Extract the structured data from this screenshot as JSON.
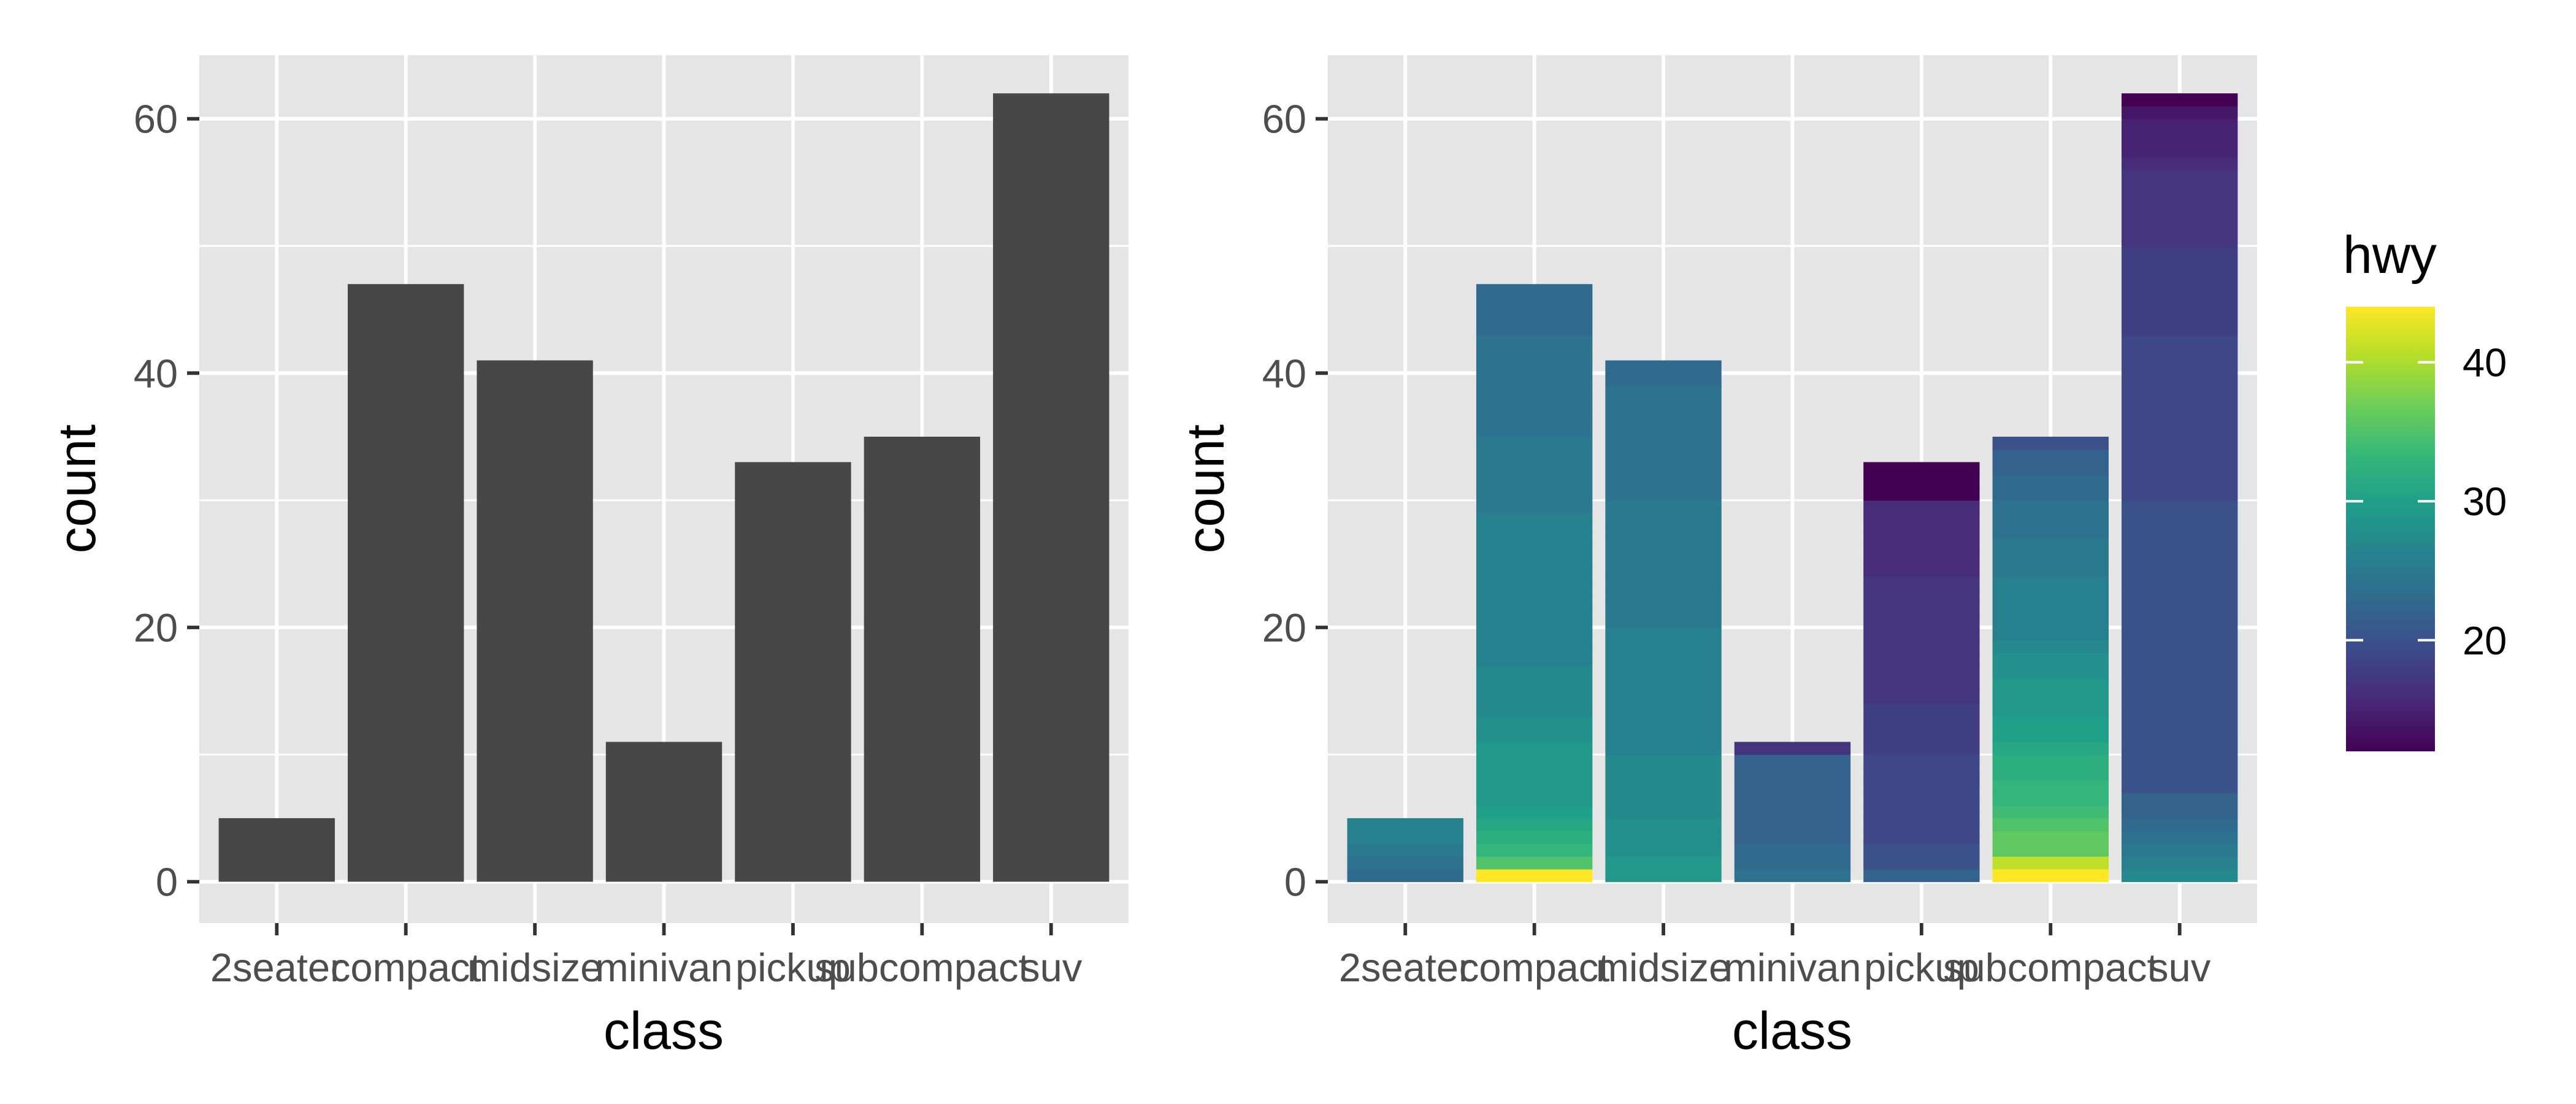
{
  "chart_data": [
    {
      "type": "bar",
      "categories": [
        "2seater",
        "compact",
        "midsize",
        "minivan",
        "pickup",
        "subcompact",
        "suv"
      ],
      "values": [
        5,
        47,
        41,
        11,
        33,
        35,
        62
      ],
      "xlabel": "class",
      "ylabel": "count",
      "ylim": [
        0,
        65
      ],
      "yticks": [
        0,
        20,
        40,
        60
      ],
      "grid": true,
      "bar_color": "#474747"
    },
    {
      "type": "bar",
      "stacked": true,
      "categories": [
        "2seater",
        "compact",
        "midsize",
        "minivan",
        "pickup",
        "subcompact",
        "suv"
      ],
      "values": [
        5,
        47,
        41,
        11,
        33,
        35,
        62
      ],
      "xlabel": "class",
      "ylabel": "count",
      "ylim": [
        0,
        65
      ],
      "yticks": [
        0,
        20,
        40,
        60
      ],
      "grid": true,
      "fill_variable": "hwy",
      "segments_hwy": {
        "2seater": [
          23,
          24,
          25,
          26,
          26
        ],
        "compact": [
          44,
          35,
          33,
          32,
          31,
          30,
          29,
          29,
          29,
          29,
          29,
          28,
          28,
          27,
          27,
          27,
          27,
          26,
          26,
          26,
          26,
          26,
          26,
          26,
          26,
          26,
          26,
          26,
          26,
          25,
          25,
          25,
          25,
          25,
          25,
          24,
          24,
          24,
          24,
          24,
          24,
          24,
          24,
          23,
          23,
          23,
          23
        ],
        "midsize": [
          29,
          29,
          28,
          28,
          28,
          27,
          27,
          27,
          27,
          27,
          26,
          26,
          26,
          26,
          26,
          26,
          26,
          26,
          26,
          26,
          25,
          25,
          25,
          25,
          25,
          25,
          25,
          25,
          25,
          25,
          24,
          24,
          24,
          24,
          24,
          24,
          24,
          24,
          24,
          23,
          23
        ],
        "minivan": [
          24,
          23,
          23,
          22,
          22,
          22,
          22,
          22,
          22,
          22,
          17
        ],
        "pickup": [
          22,
          20,
          20,
          19,
          19,
          19,
          19,
          19,
          19,
          19,
          18,
          18,
          18,
          18,
          17,
          17,
          17,
          17,
          17,
          17,
          17,
          17,
          17,
          17,
          16,
          16,
          16,
          16,
          16,
          16,
          12,
          12,
          12
        ],
        "subcompact": [
          44,
          41,
          36,
          36,
          35,
          34,
          33,
          33,
          32,
          32,
          31,
          30,
          30,
          29,
          29,
          29,
          28,
          28,
          27,
          26,
          26,
          26,
          26,
          26,
          25,
          25,
          25,
          24,
          24,
          24,
          23,
          23,
          22,
          22,
          20
        ],
        "suv": [
          27,
          26,
          25,
          24,
          23,
          22,
          22,
          20,
          20,
          20,
          20,
          20,
          20,
          20,
          20,
          20,
          20,
          20,
          20,
          20,
          20,
          20,
          20,
          20,
          20,
          20,
          20,
          20,
          20,
          20,
          19,
          19,
          19,
          19,
          19,
          19,
          19,
          19,
          19,
          19,
          19,
          19,
          19,
          18,
          18,
          18,
          18,
          18,
          18,
          18,
          17,
          17,
          17,
          17,
          17,
          17,
          16,
          15,
          15,
          15,
          14,
          12
        ]
      },
      "legend": {
        "title": "hwy",
        "position": "right",
        "range": [
          12,
          44
        ],
        "ticks": [
          20,
          30,
          40
        ],
        "colormap": "viridis",
        "colors": [
          "#440154",
          "#482878",
          "#3e4989",
          "#31688e",
          "#26828e",
          "#1f9e89",
          "#35b779",
          "#6ece58",
          "#b5de2b",
          "#fde725"
        ]
      }
    }
  ]
}
